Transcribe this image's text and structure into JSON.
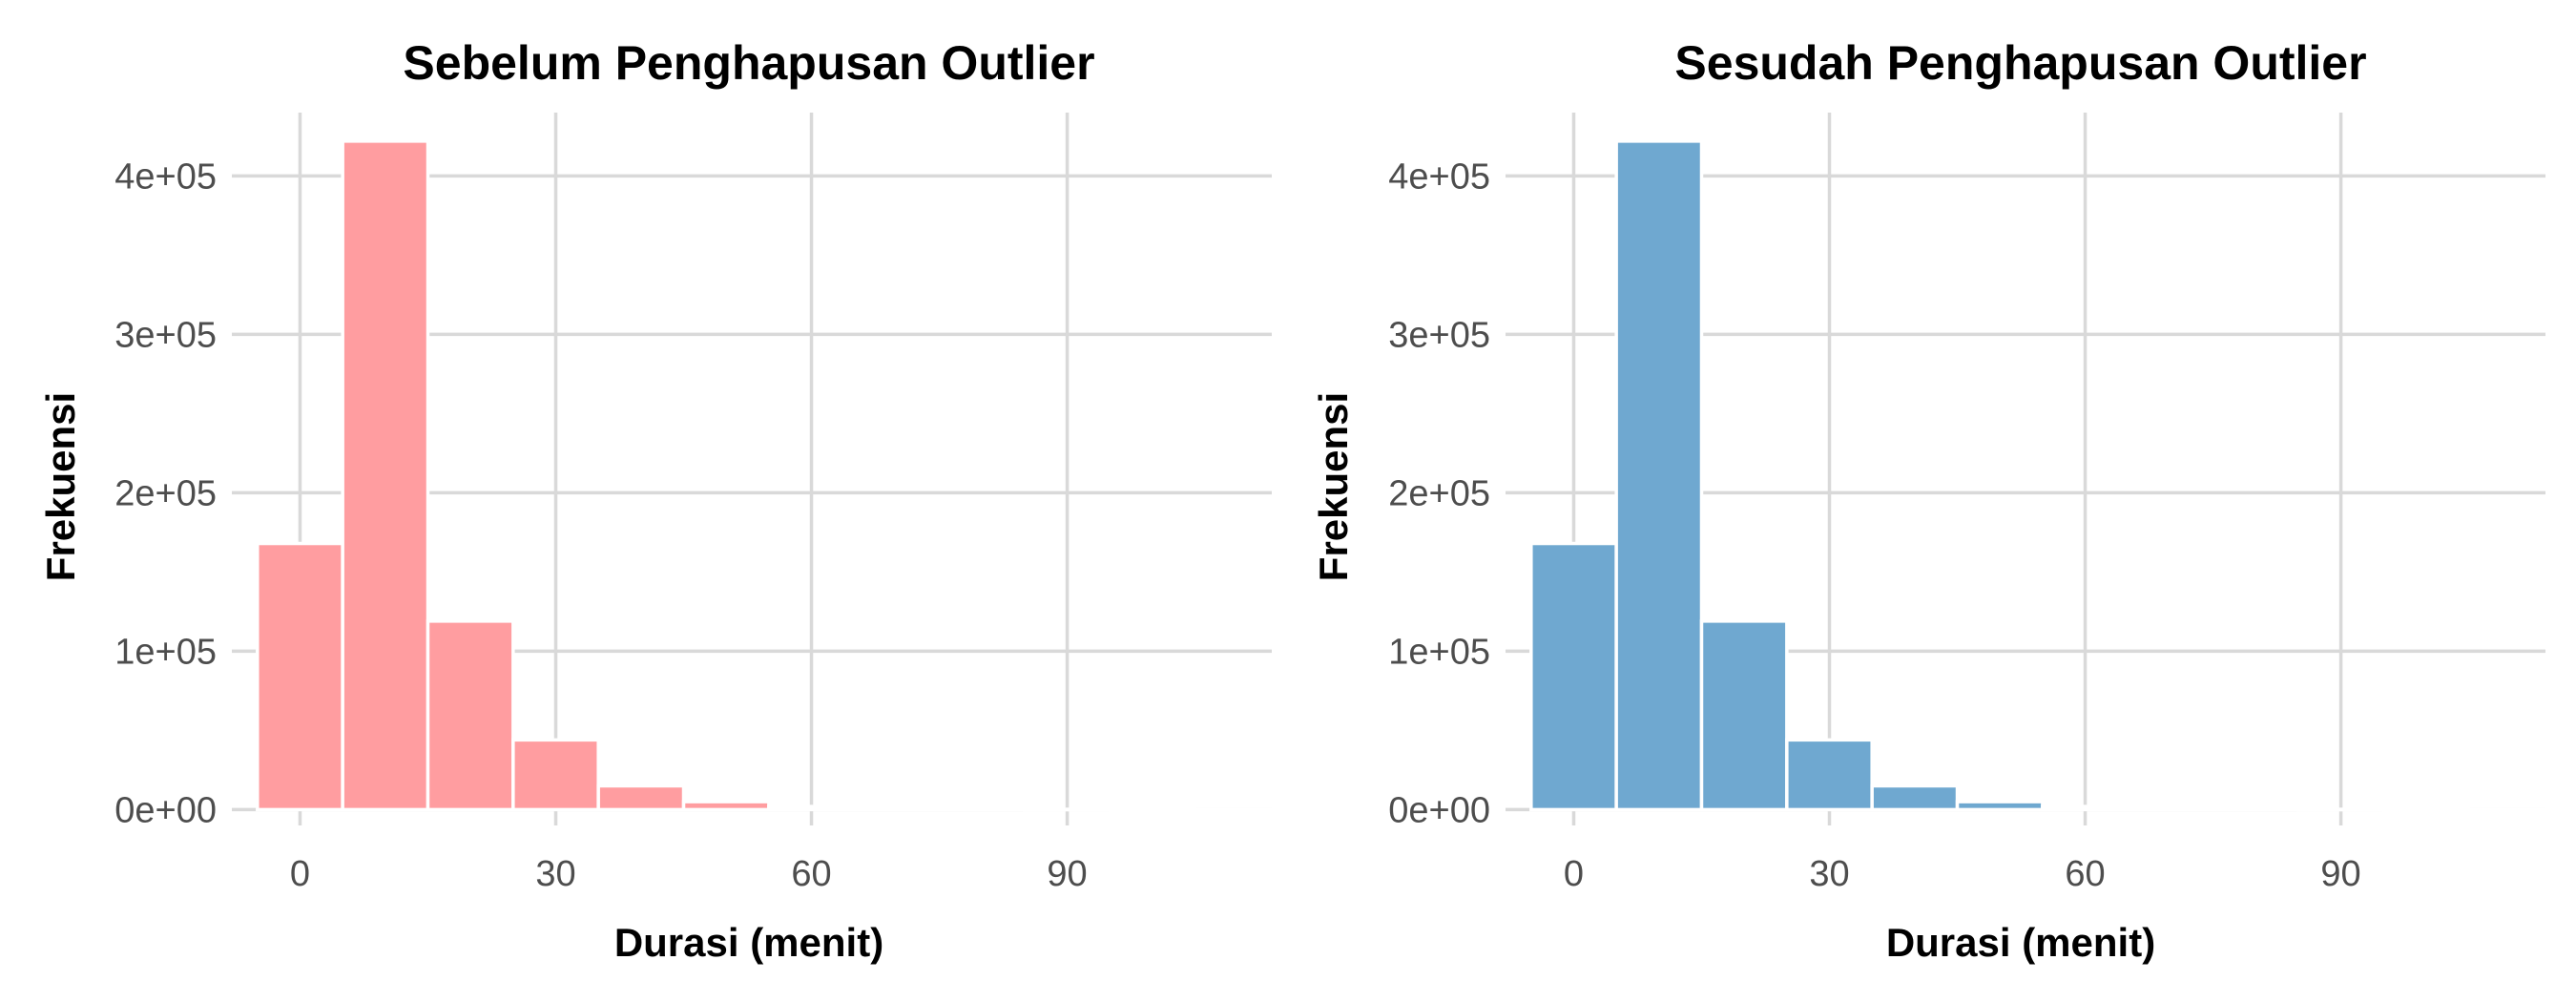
{
  "chart_data": [
    {
      "type": "bar",
      "title": "Sebelum Penghapusan Outlier",
      "xlabel": "Durasi (menit)",
      "ylabel": "Frekuensi",
      "bin_width": 10,
      "bin_centers": [
        0,
        10,
        20,
        30,
        40,
        50,
        60,
        70,
        80,
        90,
        100,
        110
      ],
      "values": [
        168000,
        422000,
        119000,
        44000,
        15000,
        5000,
        2000,
        800,
        400,
        200,
        100,
        50
      ],
      "xlim": [
        -8,
        114
      ],
      "ylim": [
        -10000,
        440000
      ],
      "x_ticks": [
        0,
        30,
        60,
        90
      ],
      "x_tick_labels": [
        "0",
        "30",
        "60",
        "90"
      ],
      "y_ticks": [
        0,
        100000,
        200000,
        300000,
        400000
      ],
      "y_tick_labels": [
        "0e+00",
        "1e+05",
        "2e+05",
        "3e+05",
        "4e+05"
      ],
      "color": "#ff9da0",
      "grid": true
    },
    {
      "type": "bar",
      "title": "Sesudah Penghapusan Outlier",
      "xlabel": "Durasi (menit)",
      "ylabel": "Frekuensi",
      "bin_width": 10,
      "bin_centers": [
        0,
        10,
        20,
        30,
        40,
        50,
        60,
        70,
        80,
        90,
        100,
        110
      ],
      "values": [
        168000,
        422000,
        119000,
        44000,
        15000,
        5000,
        2000,
        800,
        400,
        200,
        100,
        50
      ],
      "xlim": [
        -8,
        114
      ],
      "ylim": [
        -10000,
        440000
      ],
      "x_ticks": [
        0,
        30,
        60,
        90
      ],
      "x_tick_labels": [
        "0",
        "30",
        "60",
        "90"
      ],
      "y_ticks": [
        0,
        100000,
        200000,
        300000,
        400000
      ],
      "y_tick_labels": [
        "0e+00",
        "1e+05",
        "2e+05",
        "3e+05",
        "4e+05"
      ],
      "color": "#6fa8d0",
      "grid": true
    }
  ]
}
